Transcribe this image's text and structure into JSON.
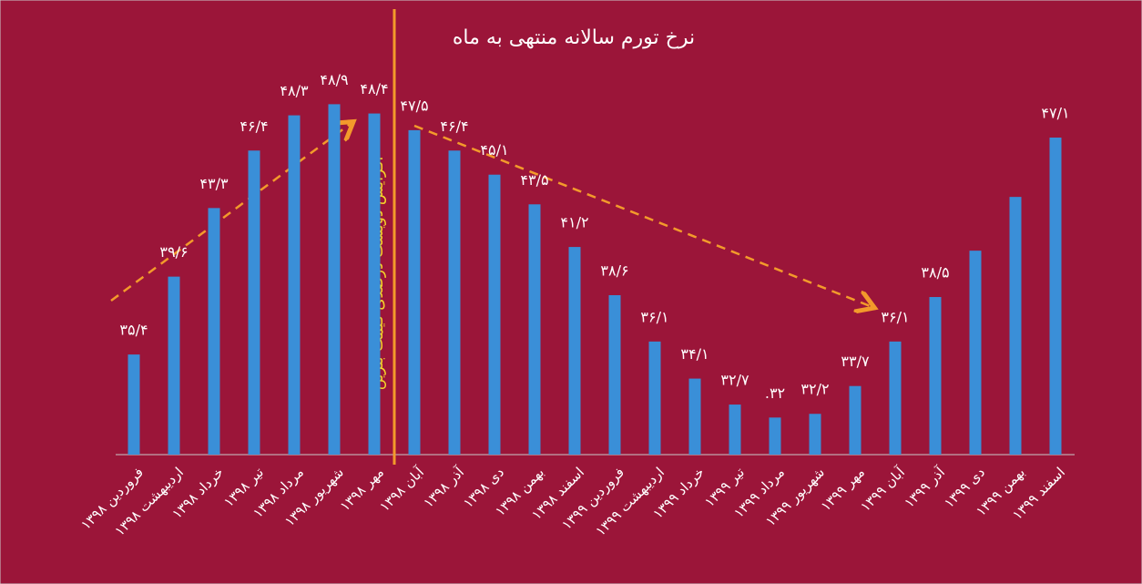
{
  "chart_data": {
    "type": "bar",
    "title": "نرخ تورم سالانه منتهی به ماه",
    "annotation": "افزایش دویست درصدی قیمت بنزین",
    "categories": [
      "فروردین ۱۳۹۸",
      "اردیبهشت ۱۳۹۸",
      "خرداد ۱۳۹۸",
      "تیر ۱۳۹۸",
      "مرداد ۱۳۹۸",
      "شهریور ۱۳۹۸",
      "مهر ۱۳۹۸",
      "آبان ۱۳۹۸",
      "آذر ۱۳۹۸",
      "دی ۱۳۹۸",
      "بهمن ۱۳۹۸",
      "اسفند ۱۳۹۸",
      "فروردین ۱۳۹۹",
      "اردیبهشت ۱۳۹۹",
      "خرداد ۱۳۹۹",
      "تیر ۱۳۹۹",
      "مرداد ۱۳۹۹",
      "شهریور ۱۳۹۹",
      "مهر ۱۳۹۹",
      "آبان ۱۳۹۹",
      "آذر ۱۳۹۹",
      "دی ۱۳۹۹",
      "بهمن ۱۳۹۹",
      "اسفند ۱۳۹۹"
    ],
    "values": [
      35.4,
      39.6,
      43.3,
      46.4,
      48.3,
      48.9,
      48.4,
      47.5,
      46.4,
      45.1,
      43.5,
      41.2,
      38.6,
      36.1,
      34.1,
      32.7,
      32,
      32.2,
      33.7,
      36.1,
      38.5,
      41.0,
      43.9,
      47.1
    ],
    "value_labels": [
      "۳۵/۴",
      "۳۹/۶",
      "۴۳/۳",
      "۴۶/۴",
      "۴۸/۳",
      "۴۸/۹",
      "۴۸/۴",
      "۴۷/۵",
      "۴۶/۴",
      "۴۵/۱",
      "۴۳/۵",
      "۴۱/۲",
      "۳۸/۶",
      "۳۶/۱",
      "۳۴/۱",
      "۳۲/۷",
      "۳۲.",
      "۳۲/۲",
      "۳۳/۷",
      "۳۶/۱",
      "۳۸/۵",
      null,
      null,
      "۴۷/۱"
    ],
    "color": "#3a8fd8",
    "ylim": [
      30,
      50
    ]
  }
}
